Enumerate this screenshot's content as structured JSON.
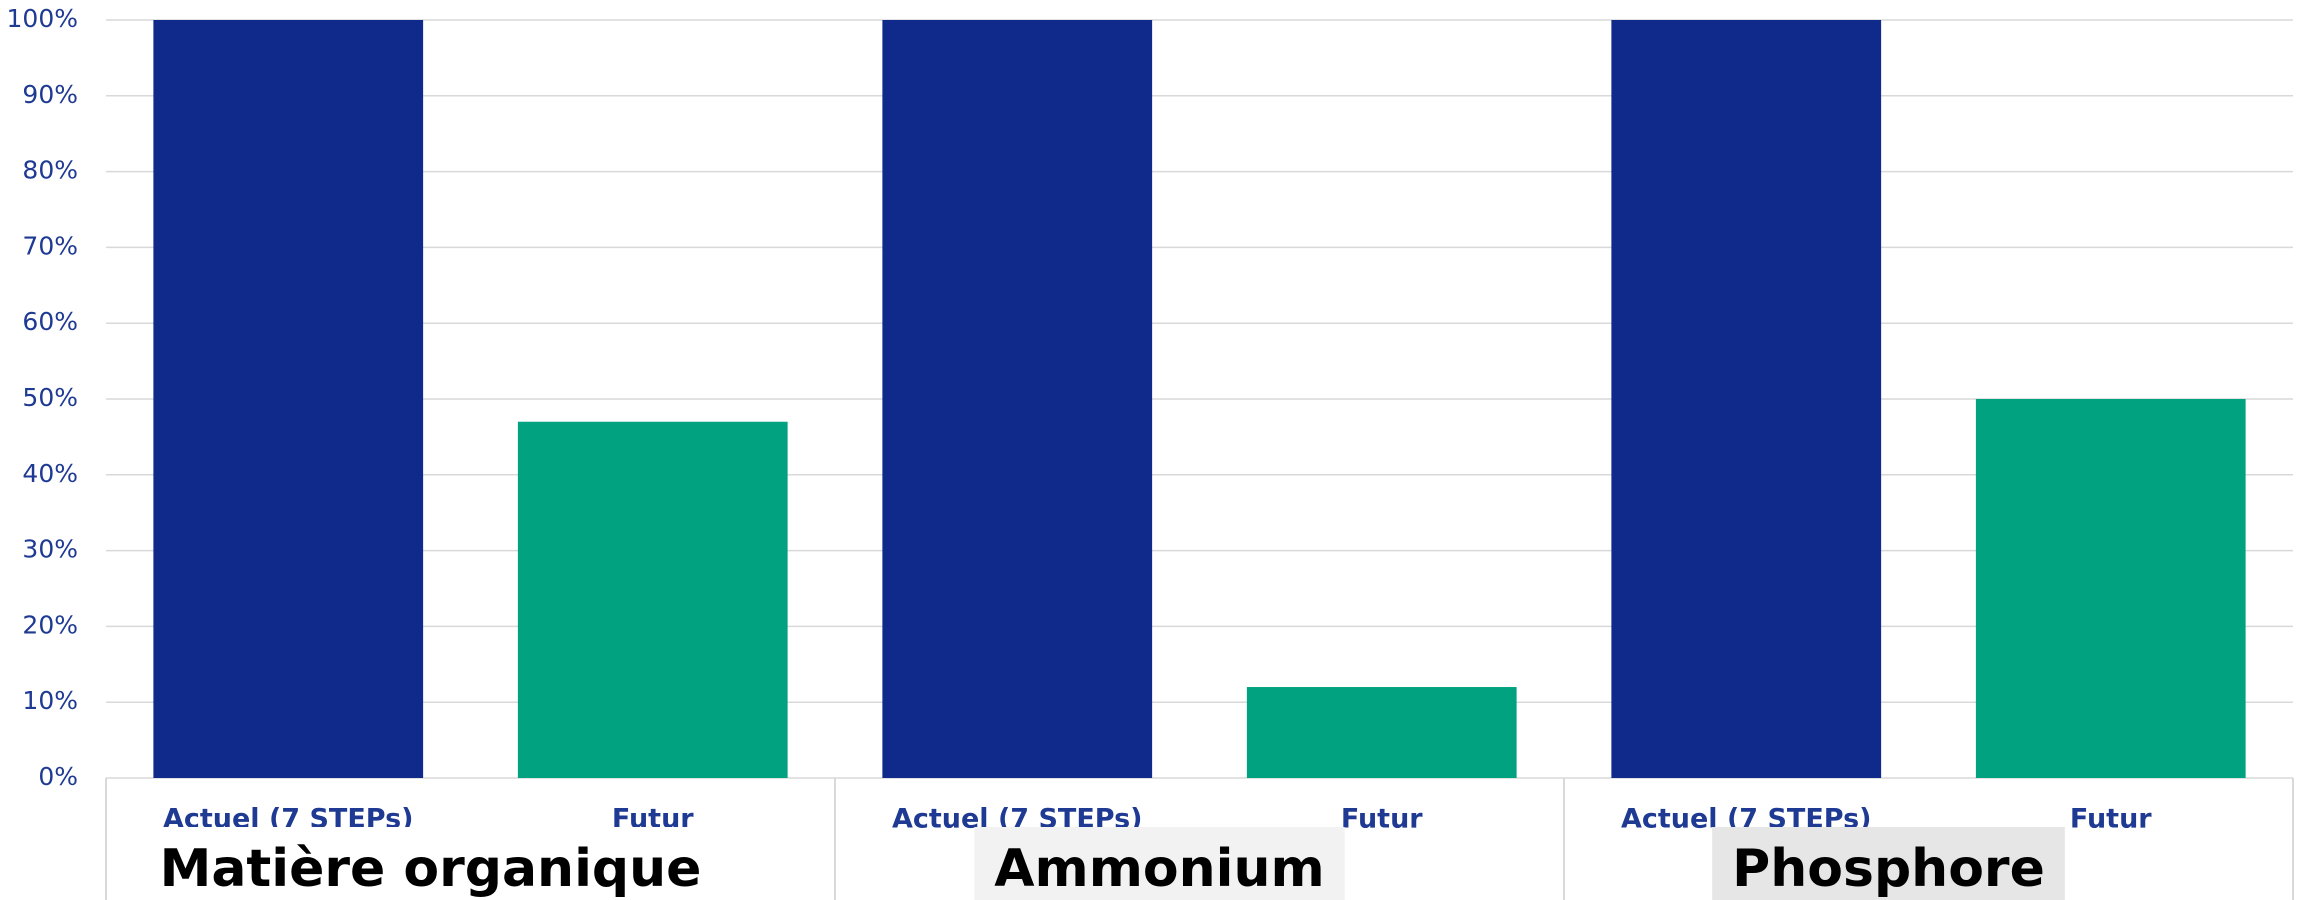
{
  "chart_data": {
    "type": "bar",
    "categories": [
      "Actuel (7 STEPs)",
      "Futur",
      "Actuel (7 STEPs)",
      "Futur",
      "Actuel (7 STEPs)",
      "Futur"
    ],
    "values": [
      100,
      47,
      100,
      12,
      100,
      50
    ],
    "groups": [
      "Matière organique",
      "Ammonium",
      "Phosphore"
    ],
    "colors": [
      "#102a8c",
      "#00a27f"
    ],
    "ylim": [
      0,
      100
    ],
    "yticks": [
      {
        "value": 0,
        "label": "0%"
      },
      {
        "value": 10,
        "label": "10%"
      },
      {
        "value": 20,
        "label": "20%"
      },
      {
        "value": 30,
        "label": "30%"
      },
      {
        "value": 40,
        "label": "40%"
      },
      {
        "value": 50,
        "label": "50%"
      },
      {
        "value": 60,
        "label": "60%"
      },
      {
        "value": 70,
        "label": "70%"
      },
      {
        "value": 80,
        "label": "80%"
      },
      {
        "value": 90,
        "label": "90%"
      },
      {
        "value": 100,
        "label": "100%"
      }
    ],
    "grid": true
  }
}
